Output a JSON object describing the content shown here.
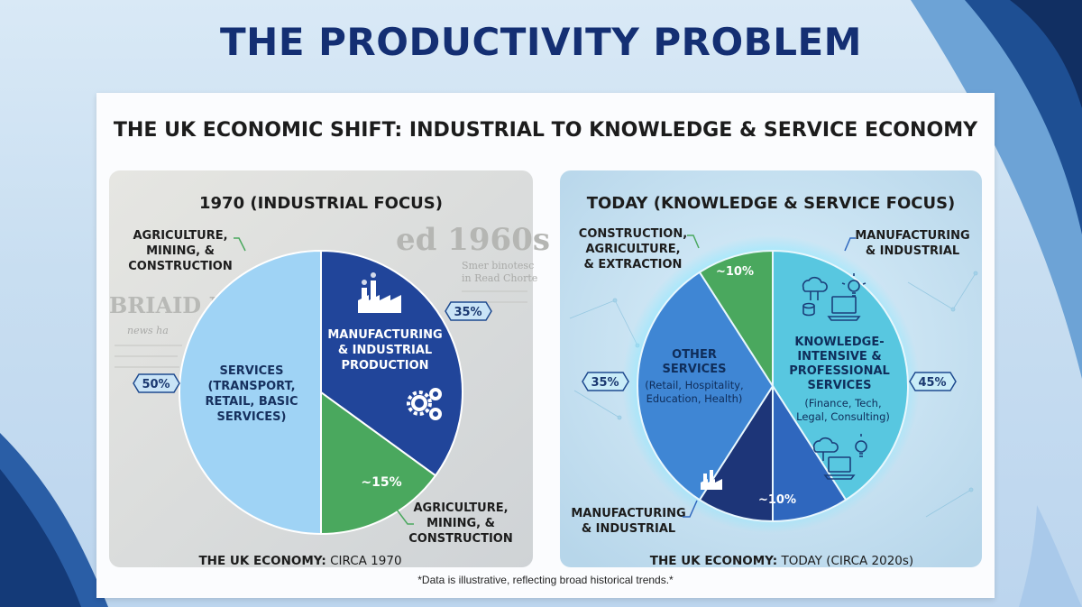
{
  "slide": {
    "title": "THE PRODUCTIVITY PROBLEM"
  },
  "card": {
    "title": "THE UK ECONOMIC SHIFT: INDUSTRIAL TO KNOWLEDGE & SERVICE ECONOMY",
    "footnote": "*Data is illustrative, reflecting broad historical trends.*"
  },
  "colors": {
    "title_navy": "#142f73",
    "light_blue": "#9fd3f5",
    "navy": "#21459a",
    "green": "#4aa85e",
    "mid_blue": "#3f86d4",
    "teal": "#58c7e0",
    "deep_navy": "#1d3578",
    "royal_blue": "#2f67be"
  },
  "chart_data": [
    {
      "type": "pie",
      "title": "1970 (INDUSTRIAL FOCUS)",
      "caption_bold": "THE UK ECONOMY:",
      "caption_rest": "CIRCA 1970",
      "background_text": [
        "ed 1960s",
        "Smer binotesc",
        "in Read Chorte",
        "BRIAID K",
        "news ha"
      ],
      "slices": [
        {
          "label": "MANUFACTURING & INDUSTRIAL PRODUCTION",
          "value": 35,
          "value_label": "35%",
          "color": "#21459a",
          "icons": [
            "factory-icon",
            "gears-icon"
          ]
        },
        {
          "label": "AGRICULTURE, MINING, & CONSTRUCTION",
          "value": 15,
          "value_label": "~15%",
          "color": "#4aa85e",
          "icons": []
        },
        {
          "label": "SERVICES (TRANSPORT, RETAIL, BASIC SERVICES)",
          "value": 50,
          "value_label": "50%",
          "color": "#9fd3f5",
          "icons": []
        }
      ],
      "callouts": [
        {
          "text": "AGRICULTURE, MINING, & CONSTRUCTION"
        },
        {
          "text": "AGRICULTURE, MINING, & CONSTRUCTION"
        }
      ]
    },
    {
      "type": "pie",
      "title": "TODAY (KNOWLEDGE & SERVICE FOCUS)",
      "caption_bold": "THE UK ECONOMY:",
      "caption_rest": "TODAY (CIRCA 2020s)",
      "slices": [
        {
          "label": "KNOWLEDGE-INTENSIVE & PROFESSIONAL SERVICES",
          "sublabel": "(Finance, Tech, Legal, Consulting)",
          "value": 45,
          "value_label": "45%",
          "color": "#58c7e0",
          "icons": [
            "cloud-icon",
            "laptop-icon",
            "lightbulb-icon"
          ]
        },
        {
          "label": "MANUFACTURING & INDUSTRIAL",
          "value": 10,
          "value_label": "~10%",
          "color": "#2f67be",
          "icons": []
        },
        {
          "label": "MANUFACTURING & INDUSTRIAL",
          "value": 10,
          "value_label": "",
          "color": "#1d3578",
          "icons": [
            "factory-icon"
          ]
        },
        {
          "label": "OTHER SERVICES",
          "sublabel": "(Retail, Hospitality, Education, Health)",
          "value": 35,
          "value_label": "35%",
          "color": "#3f86d4",
          "icons": []
        },
        {
          "label": "CONSTRUCTION, AGRICULTURE, & EXTRACTION",
          "value": 10,
          "value_label": "~10%",
          "color": "#4aa85e",
          "icons": []
        }
      ],
      "callouts": [
        {
          "text": "CONSTRUCTION, AGRICULTURE, & EXTRACTION"
        },
        {
          "text": "MANUFACTURING & INDUSTRIAL"
        },
        {
          "text": "MANUFACTURING & INDUSTRIAL"
        }
      ]
    }
  ]
}
